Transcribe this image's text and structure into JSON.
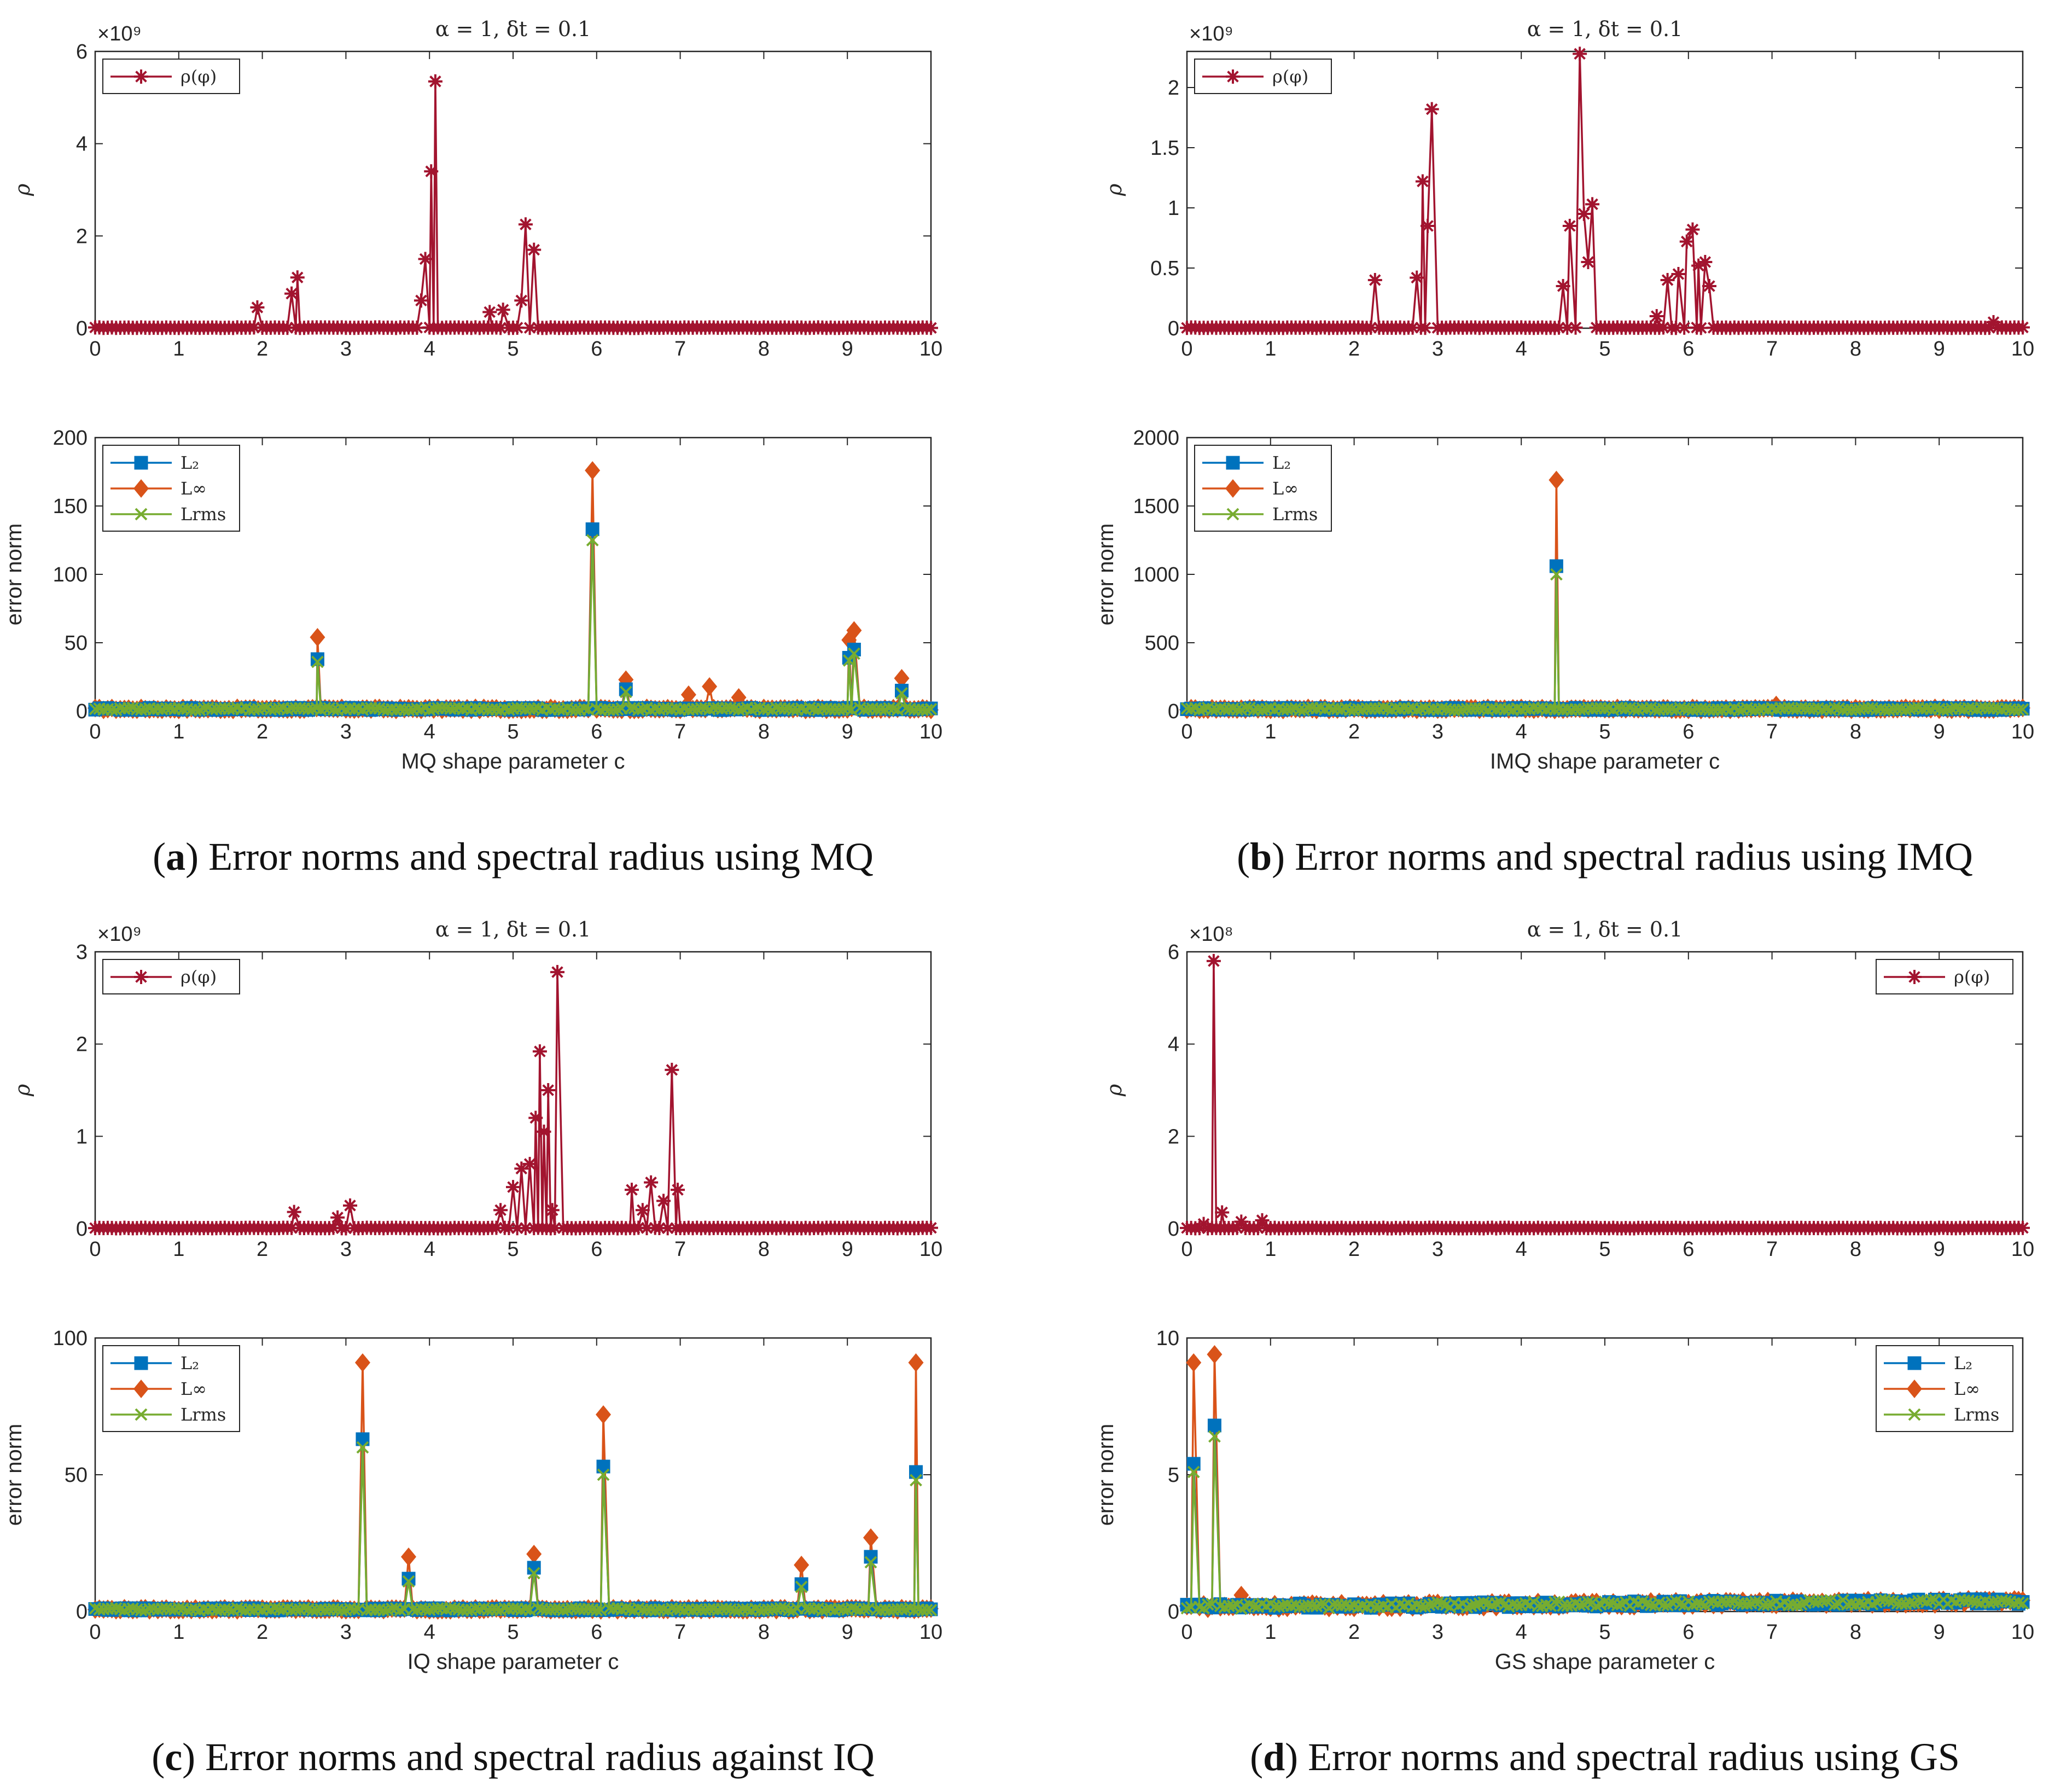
{
  "colors": {
    "rho": "#A2142F",
    "L2": "#0072BD",
    "Linf": "#D95319",
    "Lrms": "#77AC30",
    "axis": "#262626"
  },
  "chart_data": [
    {
      "id": "a",
      "caption": {
        "label": "a",
        "text": "Error norms and spectral radius using MQ"
      },
      "title": "α = 1, δt = 0.1",
      "top": {
        "type": "line",
        "ylabel": "ρ",
        "multiplier": "×10⁹",
        "ylim": [
          0,
          6
        ],
        "yticks": [
          "0",
          "2",
          "4",
          "6"
        ],
        "xlim": [
          0,
          10
        ],
        "xticks": [
          "0",
          "1",
          "2",
          "3",
          "4",
          "5",
          "6",
          "7",
          "8",
          "9",
          "10"
        ],
        "legend": {
          "position": "top-left",
          "entries": [
            "ρ(φ)"
          ]
        },
        "series": [
          {
            "name": "ρ(φ)",
            "peaks": [
              [
                1.94,
                0.45
              ],
              [
                2.35,
                0.75
              ],
              [
                2.42,
                1.1
              ],
              [
                3.9,
                0.6
              ],
              [
                3.95,
                1.5
              ],
              [
                4.02,
                3.4
              ],
              [
                4.07,
                5.35
              ],
              [
                4.72,
                0.35
              ],
              [
                4.88,
                0.4
              ],
              [
                5.15,
                2.25
              ],
              [
                5.1,
                0.6
              ],
              [
                5.25,
                1.7
              ]
            ]
          }
        ]
      },
      "bottom": {
        "type": "line",
        "ylabel": "error norm",
        "xlabel": "MQ shape parameter c",
        "ylim": [
          0,
          200
        ],
        "yticks": [
          "0",
          "50",
          "100",
          "150",
          "200"
        ],
        "xlim": [
          0,
          10
        ],
        "xticks": [
          "0",
          "1",
          "2",
          "3",
          "4",
          "5",
          "6",
          "7",
          "8",
          "9",
          "10"
        ],
        "legend": {
          "position": "top-left",
          "entries": [
            "L₂",
            "L∞",
            "Lrms"
          ]
        },
        "series": [
          {
            "name": "L₂",
            "peaks": [
              [
                2.66,
                38
              ],
              [
                5.95,
                133
              ],
              [
                6.35,
                16
              ],
              [
                9.02,
                39
              ],
              [
                9.08,
                45
              ],
              [
                9.65,
                15
              ]
            ]
          },
          {
            "name": "L∞",
            "peaks": [
              [
                2.66,
                54
              ],
              [
                5.95,
                176
              ],
              [
                6.35,
                23
              ],
              [
                7.1,
                12
              ],
              [
                7.35,
                18
              ],
              [
                7.7,
                10
              ],
              [
                9.02,
                52
              ],
              [
                9.08,
                59
              ],
              [
                9.65,
                24
              ]
            ]
          },
          {
            "name": "Lrms",
            "peaks": [
              [
                2.66,
                36
              ],
              [
                5.95,
                125
              ],
              [
                6.35,
                14
              ],
              [
                9.02,
                37
              ],
              [
                9.08,
                42
              ],
              [
                9.65,
                13
              ]
            ]
          }
        ]
      }
    },
    {
      "id": "b",
      "caption": {
        "label": "b",
        "text": "Error norms and spectral radius using IMQ"
      },
      "title": "α = 1, δt = 0.1",
      "top": {
        "type": "line",
        "ylabel": "ρ",
        "multiplier": "×10⁹",
        "ylim": [
          0,
          2.3
        ],
        "yticks": [
          "0",
          "0.5",
          "1",
          "1.5",
          "2"
        ],
        "xlim": [
          0,
          10
        ],
        "xticks": [
          "0",
          "1",
          "2",
          "3",
          "4",
          "5",
          "6",
          "7",
          "8",
          "9",
          "10"
        ],
        "legend": {
          "position": "top-left",
          "entries": [
            "ρ(φ)"
          ]
        },
        "series": [
          {
            "name": "ρ(φ)",
            "peaks": [
              [
                2.25,
                0.4
              ],
              [
                2.75,
                0.42
              ],
              [
                2.82,
                1.22
              ],
              [
                2.88,
                0.85
              ],
              [
                2.93,
                1.82
              ],
              [
                4.5,
                0.35
              ],
              [
                4.58,
                0.85
              ],
              [
                4.7,
                2.28
              ],
              [
                4.75,
                0.95
              ],
              [
                4.8,
                0.55
              ],
              [
                4.85,
                1.03
              ],
              [
                5.62,
                0.1
              ],
              [
                5.75,
                0.4
              ],
              [
                5.88,
                0.45
              ],
              [
                5.98,
                0.72
              ],
              [
                6.05,
                0.82
              ],
              [
                6.12,
                0.52
              ],
              [
                6.2,
                0.55
              ],
              [
                6.25,
                0.35
              ],
              [
                9.65,
                0.05
              ]
            ]
          }
        ]
      },
      "bottom": {
        "type": "line",
        "ylabel": "error norm",
        "xlabel": "IMQ shape parameter c",
        "ylim": [
          0,
          2000
        ],
        "yticks": [
          "0",
          "500",
          "1000",
          "1500",
          "2000"
        ],
        "xlim": [
          0,
          10
        ],
        "xticks": [
          "0",
          "1",
          "2",
          "3",
          "4",
          "5",
          "6",
          "7",
          "8",
          "9",
          "10"
        ],
        "legend": {
          "position": "top-left",
          "entries": [
            "L₂",
            "L∞",
            "Lrms"
          ]
        },
        "series": [
          {
            "name": "L₂",
            "peaks": [
              [
                4.42,
                1060
              ]
            ]
          },
          {
            "name": "L∞",
            "peaks": [
              [
                4.42,
                1690
              ],
              [
                7.05,
                45
              ]
            ]
          },
          {
            "name": "Lrms",
            "peaks": [
              [
                4.42,
                1000
              ]
            ]
          }
        ]
      }
    },
    {
      "id": "c",
      "caption": {
        "label": "c",
        "text": "Error norms and spectral radius against IQ"
      },
      "title": "α = 1, δt = 0.1",
      "top": {
        "type": "line",
        "ylabel": "ρ",
        "multiplier": "×10⁹",
        "ylim": [
          0,
          3
        ],
        "yticks": [
          "0",
          "1",
          "2",
          "3"
        ],
        "xlim": [
          0,
          10
        ],
        "xticks": [
          "0",
          "1",
          "2",
          "3",
          "4",
          "5",
          "6",
          "7",
          "8",
          "9",
          "10"
        ],
        "legend": {
          "position": "top-left",
          "entries": [
            "ρ(φ)"
          ]
        },
        "series": [
          {
            "name": "ρ(φ)",
            "peaks": [
              [
                2.38,
                0.18
              ],
              [
                2.9,
                0.12
              ],
              [
                3.05,
                0.25
              ],
              [
                4.85,
                0.2
              ],
              [
                5.0,
                0.45
              ],
              [
                5.1,
                0.65
              ],
              [
                5.2,
                0.7
              ],
              [
                5.27,
                1.2
              ],
              [
                5.32,
                1.92
              ],
              [
                5.37,
                1.05
              ],
              [
                5.42,
                1.5
              ],
              [
                5.47,
                0.2
              ],
              [
                5.53,
                2.78
              ],
              [
                6.42,
                0.42
              ],
              [
                6.55,
                0.2
              ],
              [
                6.65,
                0.5
              ],
              [
                6.8,
                0.3
              ],
              [
                6.9,
                1.72
              ],
              [
                6.97,
                0.42
              ]
            ]
          }
        ]
      },
      "bottom": {
        "type": "line",
        "ylabel": "error norm",
        "xlabel": "IQ shape parameter c",
        "ylim": [
          0,
          100
        ],
        "yticks": [
          "0",
          "50",
          "100"
        ],
        "xlim": [
          0,
          10
        ],
        "xticks": [
          "0",
          "1",
          "2",
          "3",
          "4",
          "5",
          "6",
          "7",
          "8",
          "9",
          "10"
        ],
        "legend": {
          "position": "top-left",
          "entries": [
            "L₂",
            "L∞",
            "Lrms"
          ]
        },
        "series": [
          {
            "name": "L₂",
            "peaks": [
              [
                3.2,
                63
              ],
              [
                3.75,
                12
              ],
              [
                5.25,
                16
              ],
              [
                6.08,
                53
              ],
              [
                8.45,
                10
              ],
              [
                9.28,
                20
              ],
              [
                9.82,
                51
              ]
            ]
          },
          {
            "name": "L∞",
            "peaks": [
              [
                3.2,
                91
              ],
              [
                3.75,
                20
              ],
              [
                5.25,
                21
              ],
              [
                6.08,
                72
              ],
              [
                8.45,
                17
              ],
              [
                9.28,
                27
              ],
              [
                9.82,
                91
              ]
            ]
          },
          {
            "name": "Lrms",
            "peaks": [
              [
                3.2,
                60
              ],
              [
                3.75,
                11
              ],
              [
                5.25,
                14
              ],
              [
                6.08,
                50
              ],
              [
                8.45,
                9
              ],
              [
                9.28,
                18
              ],
              [
                9.82,
                48
              ]
            ]
          }
        ]
      }
    },
    {
      "id": "d",
      "caption": {
        "label": "d",
        "text": "Error norms and spectral radius using GS"
      },
      "title": "α = 1, δt = 0.1",
      "top": {
        "type": "line",
        "ylabel": "ρ",
        "multiplier": "×10⁸",
        "ylim": [
          0,
          6
        ],
        "yticks": [
          "0",
          "2",
          "4",
          "6"
        ],
        "xlim": [
          0,
          10
        ],
        "xticks": [
          "0",
          "1",
          "2",
          "3",
          "4",
          "5",
          "6",
          "7",
          "8",
          "9",
          "10"
        ],
        "legend": {
          "position": "top-right",
          "entries": [
            "ρ(φ)"
          ]
        },
        "series": [
          {
            "name": "ρ(φ)",
            "peaks": [
              [
                0.2,
                0.1
              ],
              [
                0.32,
                5.8
              ],
              [
                0.42,
                0.35
              ],
              [
                0.65,
                0.15
              ],
              [
                0.9,
                0.18
              ]
            ]
          }
        ]
      },
      "bottom": {
        "type": "line",
        "ylabel": "error norm",
        "xlabel": "GS shape parameter c",
        "ylim": [
          0,
          10
        ],
        "yticks": [
          "0",
          "5",
          "10"
        ],
        "xlim": [
          0,
          10
        ],
        "xticks": [
          "0",
          "1",
          "2",
          "3",
          "4",
          "5",
          "6",
          "7",
          "8",
          "9",
          "10"
        ],
        "legend": {
          "position": "top-right",
          "entries": [
            "L₂",
            "L∞",
            "Lrms"
          ]
        },
        "series": [
          {
            "name": "L₂",
            "peaks": [
              [
                0.08,
                5.4
              ],
              [
                0.33,
                6.8
              ]
            ]
          },
          {
            "name": "L∞",
            "peaks": [
              [
                0.08,
                9.1
              ],
              [
                0.33,
                9.4
              ],
              [
                0.65,
                0.6
              ]
            ]
          },
          {
            "name": "Lrms",
            "peaks": [
              [
                0.08,
                5.1
              ],
              [
                0.33,
                6.4
              ]
            ]
          }
        ]
      }
    }
  ]
}
